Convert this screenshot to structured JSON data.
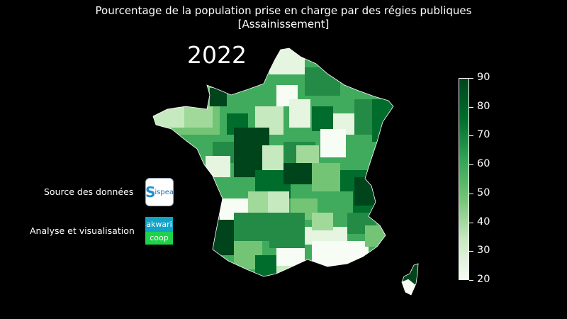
{
  "title_line1": "Pourcentage de la population prise en charge par des régies publiques",
  "title_line2": "[Assainissement]",
  "year": "2022",
  "credits": {
    "source_label": "Source des données",
    "analysis_label": "Analyse et visualisation",
    "sispea_logo": "Sispea",
    "akwari_top": "akwari",
    "akwari_bottom": "coop"
  },
  "colorbar": {
    "min": 20,
    "max": 90,
    "ticks": [
      "20",
      "30",
      "40",
      "50",
      "60",
      "70",
      "80",
      "90"
    ],
    "colors": [
      "#f7fcf5",
      "#c7e9c0",
      "#74c476",
      "#31a354",
      "#006d2c",
      "#00441b"
    ]
  }
}
